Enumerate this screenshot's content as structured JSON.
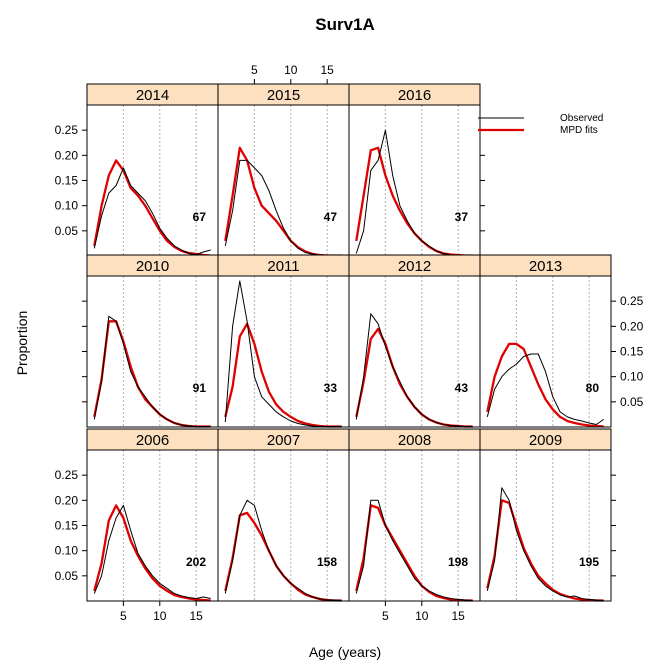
{
  "chart_data": {
    "type": "line",
    "title": "Surv1A",
    "xlabel": "Age (years)",
    "ylabel": "Proportion",
    "xlim": [
      0,
      18
    ],
    "ylim": [
      0,
      0.3
    ],
    "x_ticks": [
      5,
      10,
      15
    ],
    "y_ticks": [
      0.05,
      0.1,
      0.15,
      0.2,
      0.25
    ],
    "y_tick_labels": [
      "0.05",
      "0.10",
      "0.15",
      "0.20",
      "0.25"
    ],
    "grid": "vertical dotted at x ticks",
    "legend": {
      "placement": "top-right",
      "entries": [
        {
          "label": "Observed",
          "color": "#000000"
        },
        {
          "label": "MPD fits",
          "color": "#e00000"
        }
      ]
    },
    "colors": {
      "observed": "#000000",
      "fit": "#e00000",
      "strip": "#fde0c0"
    },
    "x": [
      1,
      2,
      3,
      4,
      5,
      6,
      7,
      8,
      9,
      10,
      11,
      12,
      13,
      14,
      15,
      16,
      17
    ],
    "panels": [
      {
        "year": "2014",
        "row": 0,
        "col": 0,
        "n": "67",
        "observed": [
          0.015,
          0.08,
          0.125,
          0.14,
          0.175,
          0.14,
          0.125,
          0.11,
          0.085,
          0.055,
          0.035,
          0.02,
          0.012,
          0.005,
          0.003,
          0.008,
          0.012
        ],
        "fit": [
          0.02,
          0.1,
          0.16,
          0.19,
          0.17,
          0.135,
          0.12,
          0.1,
          0.075,
          0.05,
          0.03,
          0.018,
          0.01,
          0.006,
          0.004,
          0.002,
          0.001
        ]
      },
      {
        "year": "2015",
        "row": 0,
        "col": 1,
        "n": "47",
        "observed": [
          0.02,
          0.09,
          0.19,
          0.19,
          0.175,
          0.16,
          0.13,
          0.09,
          0.055,
          0.03,
          0.015,
          0.007,
          0.004,
          0.002,
          0.001,
          0.001,
          0.001
        ],
        "fit": [
          0.03,
          0.12,
          0.215,
          0.19,
          0.135,
          0.1,
          0.085,
          0.07,
          0.05,
          0.03,
          0.017,
          0.009,
          0.004,
          0.002,
          0.001,
          0.001,
          0.001
        ]
      },
      {
        "year": "2016",
        "row": 0,
        "col": 2,
        "n": "37",
        "observed": [
          0.005,
          0.05,
          0.17,
          0.19,
          0.25,
          0.16,
          0.1,
          0.07,
          0.045,
          0.03,
          0.02,
          0.01,
          0.005,
          0.002,
          0.001,
          0.001,
          0.001
        ],
        "fit": [
          0.03,
          0.12,
          0.21,
          0.215,
          0.16,
          0.12,
          0.09,
          0.065,
          0.045,
          0.03,
          0.018,
          0.01,
          0.005,
          0.003,
          0.002,
          0.001,
          0.001
        ]
      },
      {
        "year": "2010",
        "row": 1,
        "col": 0,
        "n": "91",
        "observed": [
          0.015,
          0.09,
          0.22,
          0.21,
          0.165,
          0.11,
          0.08,
          0.06,
          0.04,
          0.025,
          0.015,
          0.008,
          0.004,
          0.002,
          0.001,
          0.001,
          0.001
        ],
        "fit": [
          0.02,
          0.095,
          0.21,
          0.21,
          0.17,
          0.12,
          0.08,
          0.055,
          0.04,
          0.025,
          0.015,
          0.008,
          0.004,
          0.002,
          0.001,
          0.001,
          0.001
        ]
      },
      {
        "year": "2011",
        "row": 1,
        "col": 1,
        "n": "33",
        "observed": [
          0.01,
          0.2,
          0.29,
          0.21,
          0.1,
          0.06,
          0.045,
          0.03,
          0.02,
          0.012,
          0.007,
          0.004,
          0.002,
          0.001,
          0.001,
          0.001,
          0.001
        ],
        "fit": [
          0.02,
          0.08,
          0.18,
          0.205,
          0.165,
          0.11,
          0.07,
          0.045,
          0.03,
          0.02,
          0.012,
          0.007,
          0.004,
          0.002,
          0.001,
          0.001,
          0.001
        ]
      },
      {
        "year": "2012",
        "row": 1,
        "col": 2,
        "n": "43",
        "observed": [
          0.015,
          0.1,
          0.225,
          0.205,
          0.16,
          0.12,
          0.09,
          0.06,
          0.04,
          0.025,
          0.015,
          0.009,
          0.005,
          0.003,
          0.002,
          0.001,
          0.001
        ],
        "fit": [
          0.02,
          0.09,
          0.175,
          0.195,
          0.165,
          0.12,
          0.085,
          0.06,
          0.04,
          0.025,
          0.015,
          0.009,
          0.005,
          0.003,
          0.002,
          0.001,
          0.001
        ]
      },
      {
        "year": "2013",
        "row": 1,
        "col": 3,
        "n": "80",
        "observed": [
          0.02,
          0.075,
          0.1,
          0.115,
          0.125,
          0.14,
          0.145,
          0.145,
          0.11,
          0.06,
          0.03,
          0.02,
          0.015,
          0.012,
          0.008,
          0.005,
          0.015
        ],
        "fit": [
          0.03,
          0.1,
          0.14,
          0.165,
          0.165,
          0.155,
          0.12,
          0.085,
          0.055,
          0.035,
          0.02,
          0.012,
          0.008,
          0.005,
          0.003,
          0.002,
          0.001
        ]
      },
      {
        "year": "2006",
        "row": 2,
        "col": 0,
        "n": "202",
        "observed": [
          0.015,
          0.05,
          0.12,
          0.165,
          0.19,
          0.14,
          0.095,
          0.07,
          0.05,
          0.035,
          0.025,
          0.015,
          0.01,
          0.007,
          0.005,
          0.008,
          0.005
        ],
        "fit": [
          0.02,
          0.075,
          0.16,
          0.19,
          0.165,
          0.12,
          0.09,
          0.065,
          0.045,
          0.03,
          0.02,
          0.012,
          0.008,
          0.005,
          0.003,
          0.002,
          0.001
        ]
      },
      {
        "year": "2007",
        "row": 2,
        "col": 1,
        "n": "158",
        "observed": [
          0.015,
          0.08,
          0.17,
          0.2,
          0.19,
          0.14,
          0.1,
          0.07,
          0.05,
          0.035,
          0.025,
          0.015,
          0.008,
          0.004,
          0.002,
          0.002,
          0.001
        ],
        "fit": [
          0.02,
          0.085,
          0.17,
          0.175,
          0.155,
          0.13,
          0.1,
          0.07,
          0.05,
          0.035,
          0.022,
          0.013,
          0.008,
          0.004,
          0.002,
          0.001,
          0.001
        ]
      },
      {
        "year": "2008",
        "row": 2,
        "col": 2,
        "n": "198",
        "observed": [
          0.015,
          0.07,
          0.2,
          0.2,
          0.15,
          0.12,
          0.095,
          0.07,
          0.045,
          0.03,
          0.02,
          0.013,
          0.008,
          0.005,
          0.003,
          0.002,
          0.001
        ],
        "fit": [
          0.02,
          0.085,
          0.19,
          0.185,
          0.15,
          0.125,
          0.1,
          0.075,
          0.05,
          0.03,
          0.018,
          0.01,
          0.006,
          0.003,
          0.002,
          0.001,
          0.001
        ]
      },
      {
        "year": "2009",
        "row": 2,
        "col": 3,
        "n": "195",
        "observed": [
          0.02,
          0.08,
          0.225,
          0.2,
          0.14,
          0.1,
          0.07,
          0.045,
          0.03,
          0.02,
          0.012,
          0.008,
          0.01,
          0.005,
          0.003,
          0.002,
          0.001
        ],
        "fit": [
          0.025,
          0.09,
          0.2,
          0.195,
          0.15,
          0.105,
          0.075,
          0.05,
          0.035,
          0.022,
          0.014,
          0.009,
          0.005,
          0.003,
          0.002,
          0.001,
          0.001
        ]
      }
    ]
  }
}
